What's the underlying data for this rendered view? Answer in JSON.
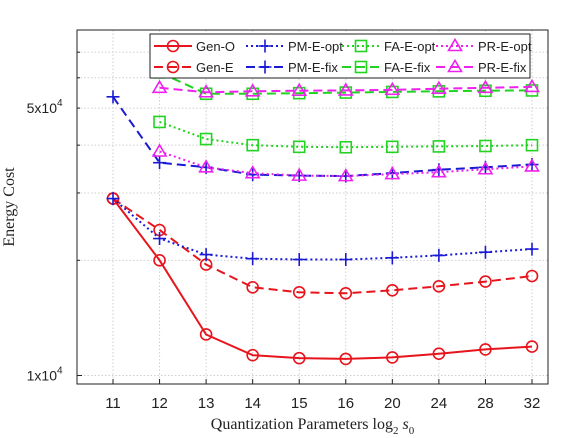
{
  "chart_data": {
    "type": "line",
    "xlabel": "Quantization Parameters log",
    "xlabel_sub": "2",
    "xlabel_var": "s",
    "xlabel_var_sub": "0",
    "ylabel": "Energy Cost",
    "y_scale": "log",
    "ylim": [
      9500,
      80000
    ],
    "y_ticks": [
      {
        "value": 10000,
        "label": "1x10"
      },
      {
        "value": 50000,
        "label": "5x10"
      }
    ],
    "y_tick_exp": "4",
    "x_ticks": [
      {
        "value": 11,
        "label": "11"
      },
      {
        "value": 12,
        "label": "12"
      },
      {
        "value": 13,
        "label": "13"
      },
      {
        "value": 14,
        "label": "14"
      },
      {
        "value": 15,
        "label": "15"
      },
      {
        "value": 16,
        "label": "16"
      },
      {
        "value": 20,
        "label": "20"
      },
      {
        "value": 24,
        "label": "24"
      },
      {
        "value": 28,
        "label": "28"
      },
      {
        "value": 32,
        "label": "32"
      }
    ],
    "grid": true,
    "legend_position": "top-right",
    "x": [
      11,
      12,
      13,
      14,
      15,
      16,
      20,
      24,
      28,
      32
    ],
    "series": [
      {
        "name": "Gen-O",
        "color": "#e8141c",
        "dash": "solid",
        "marker": "circle",
        "values": [
          29000,
          20000,
          12800,
          11300,
          11100,
          11050,
          11150,
          11400,
          11700,
          11900
        ]
      },
      {
        "name": "Gen-E",
        "color": "#e8141c",
        "dash": "dashed",
        "marker": "circle",
        "values": [
          29000,
          24000,
          19500,
          17000,
          16500,
          16400,
          16700,
          17100,
          17600,
          18200
        ]
      },
      {
        "name": "PM-E-opt",
        "color": "#1a1ad6",
        "dash": "dotted",
        "marker": "plus",
        "values": [
          29000,
          22800,
          20700,
          20200,
          20100,
          20100,
          20300,
          20600,
          21000,
          21400
        ]
      },
      {
        "name": "PM-E-fix",
        "color": "#1a1ad6",
        "dash": "dashed",
        "marker": "plus",
        "values": [
          53500,
          36000,
          35000,
          33500,
          33300,
          33200,
          33800,
          34500,
          35000,
          35600
        ]
      },
      {
        "name": "FA-E-opt",
        "color": "#22d322",
        "dash": "dotted",
        "marker": "square",
        "values": [
          null,
          46000,
          41500,
          40000,
          39600,
          39500,
          39600,
          39700,
          39800,
          40000
        ]
      },
      {
        "name": "FA-E-fix",
        "color": "#22d322",
        "dash": "dashed",
        "marker": "square",
        "values": [
          null,
          62000,
          54500,
          54500,
          54700,
          54900,
          55100,
          55300,
          55500,
          55600
        ]
      },
      {
        "name": "PR-E-opt",
        "color": "#ee22ee",
        "dash": "dotted",
        "marker": "triangle",
        "values": [
          null,
          38500,
          35000,
          33800,
          33300,
          33200,
          33600,
          34000,
          34600,
          35200
        ]
      },
      {
        "name": "PR-E-fix",
        "color": "#ee22ee",
        "dash": "dashed",
        "marker": "triangle",
        "values": [
          null,
          56500,
          55000,
          55300,
          55500,
          55600,
          55800,
          56200,
          56500,
          56800
        ]
      }
    ],
    "legend_rows": [
      [
        "Gen-O",
        "PM-E-opt",
        "FA-E-opt",
        "PR-E-opt"
      ],
      [
        "Gen-E",
        "PM-E-fix",
        "FA-E-fix",
        "PR-E-fix"
      ]
    ]
  }
}
